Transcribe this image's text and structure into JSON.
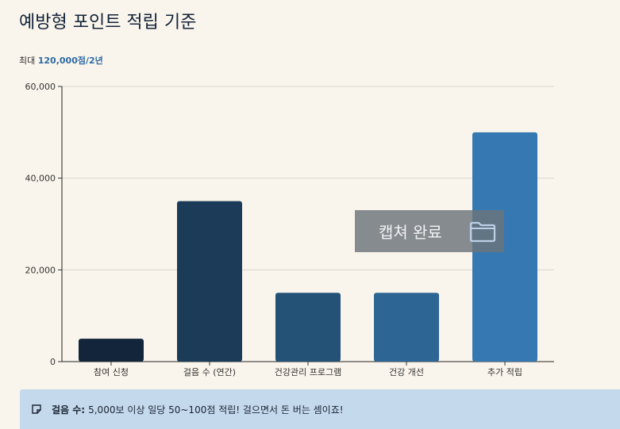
{
  "page": {
    "title": "예방형 포인트 적립 기준",
    "subtitle_prefix": "최대 ",
    "subtitle_max": "120,000점/2년"
  },
  "toast": {
    "text": "캡쳐 완료",
    "icon": "folder-icon"
  },
  "notice": {
    "icon": "sticky-note-icon",
    "label": "걸음 수:",
    "text": "5,000보 이상 일당 50~100점 적립! 걸으면서 돈 버는 셈이죠!"
  },
  "chart_data": {
    "type": "bar",
    "categories": [
      "참여 신청",
      "걸음 수 (연간)",
      "건강관리 프로그램",
      "건강 개선",
      "추가 적립"
    ],
    "values": [
      5000,
      35000,
      15000,
      15000,
      50000
    ],
    "colors": [
      "#12253a",
      "#1c3b59",
      "#235276",
      "#2d6595",
      "#3679b2"
    ],
    "title": "",
    "xlabel": "",
    "ylabel": "",
    "ylim": [
      0,
      60000
    ],
    "yticks": [
      0,
      20000,
      40000,
      60000
    ],
    "ytick_labels": [
      "0",
      "20,000",
      "40,000",
      "60,000"
    ],
    "grid": true,
    "legend": "none"
  }
}
